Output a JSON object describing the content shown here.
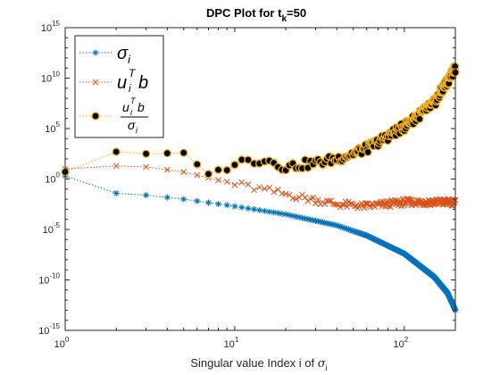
{
  "chart_data": {
    "type": "scatter",
    "title_main": "DPC Plot for t",
    "title_sub": "k",
    "title_tail": "=50",
    "xlabel_prefix": "Singular value Index i of ",
    "xlabel_symbol": "σ",
    "xlabel_sub": "i",
    "x_scale": "log",
    "y_scale": "log",
    "xlim": [
      1,
      200
    ],
    "ylim": [
      1e-15,
      1000000000000000.0
    ],
    "x_ticks": [
      {
        "value": 1,
        "base": "10",
        "exp": "0"
      },
      {
        "value": 10,
        "base": "10",
        "exp": "1"
      },
      {
        "value": 100,
        "base": "10",
        "exp": "2"
      }
    ],
    "y_ticks": [
      {
        "value": 1000000000000000.0,
        "base": "10",
        "exp": "15"
      },
      {
        "value": 10000000000.0,
        "base": "10",
        "exp": "10"
      },
      {
        "value": 100000.0,
        "base": "10",
        "exp": "5"
      },
      {
        "value": 1,
        "base": "10",
        "exp": "0"
      },
      {
        "value": 1e-05,
        "base": "10",
        "exp": "-5"
      },
      {
        "value": 1e-10,
        "base": "10",
        "exp": "-10"
      },
      {
        "value": 1e-15,
        "base": "10",
        "exp": "-15"
      }
    ],
    "legend_position": "top-left",
    "grid": false,
    "n_points": 200,
    "series": [
      {
        "name": "σ_i",
        "legend_label": {
          "main": "σ",
          "sub": "i"
        },
        "marker": "asterisk",
        "line": "dotted",
        "color": "#0072BD",
        "log10_anchors": [
          [
            1,
            0.3
          ],
          [
            2,
            -1.4
          ],
          [
            3,
            -1.6
          ],
          [
            5,
            -2.0
          ],
          [
            10,
            -2.7
          ],
          [
            20,
            -3.5
          ],
          [
            40,
            -4.6
          ],
          [
            60,
            -5.6
          ],
          [
            100,
            -7.4
          ],
          [
            150,
            -9.7
          ],
          [
            180,
            -11.3
          ],
          [
            200,
            -13.0
          ]
        ]
      },
      {
        "name": "u_i^T b",
        "legend_label": {
          "main": "u",
          "sup": "T",
          "sub": "i",
          "tail": "b"
        },
        "marker": "x",
        "line": "dotted",
        "color": "#D95319",
        "log10_anchors": [
          [
            1,
            1.0
          ],
          [
            2,
            1.3
          ],
          [
            3,
            1.2
          ],
          [
            5,
            0.7
          ],
          [
            10,
            -0.5
          ],
          [
            20,
            -1.5
          ],
          [
            40,
            -2.5
          ],
          [
            60,
            -2.7
          ],
          [
            100,
            -2.3
          ],
          [
            200,
            -2.3
          ]
        ]
      },
      {
        "name": "u_i^T b / σ_i",
        "legend_label": {
          "num_main": "u",
          "num_sup": "T",
          "num_sub": "i",
          "num_tail": "b",
          "den_main": "σ",
          "den_sub": "i"
        },
        "marker": "circle",
        "line": "dotted",
        "color": "#EDB120",
        "face_color": "#000000",
        "log10_anchors": [
          [
            1,
            0.7
          ],
          [
            2,
            2.7
          ],
          [
            3,
            2.5
          ],
          [
            5,
            2.6
          ],
          [
            7,
            0.5
          ],
          [
            10,
            1.6
          ],
          [
            15,
            2.0
          ],
          [
            20,
            1.2
          ],
          [
            30,
            1.6
          ],
          [
            40,
            2.0
          ],
          [
            60,
            3.0
          ],
          [
            100,
            5.2
          ],
          [
            150,
            7.5
          ],
          [
            200,
            11.0
          ]
        ]
      }
    ]
  }
}
